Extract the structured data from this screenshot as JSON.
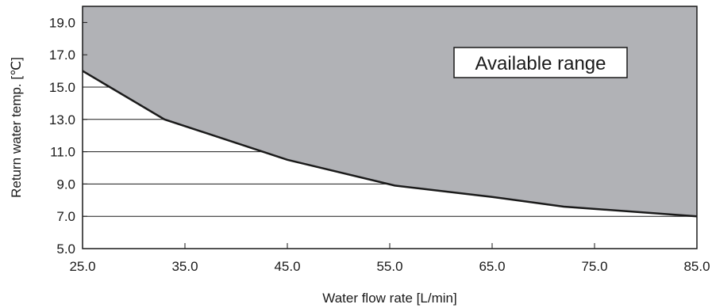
{
  "chart_data": {
    "type": "area",
    "xlabel": "Water flow rate [L/min]",
    "ylabel": "Return water temp. [℃]",
    "xlim": [
      25.0,
      85.0
    ],
    "ylim": [
      5.0,
      20.0
    ],
    "x_ticks": [
      "25.0",
      "35.0",
      "45.0",
      "55.0",
      "65.0",
      "75.0",
      "85.0"
    ],
    "y_ticks": [
      "5.0",
      "7.0",
      "9.0",
      "11.0",
      "13.0",
      "15.0",
      "17.0",
      "19.0"
    ],
    "grid": "horizontal",
    "series": [
      {
        "x": [
          25.0,
          33.0,
          45.0,
          55.5,
          65.0,
          72.0,
          85.0
        ],
        "y": [
          16.0,
          13.0,
          10.5,
          8.9,
          8.2,
          7.6,
          7.0
        ]
      }
    ],
    "annotation": "Available range",
    "fill_color": "#b1b2b6",
    "line_color": "#1a1a1a"
  }
}
